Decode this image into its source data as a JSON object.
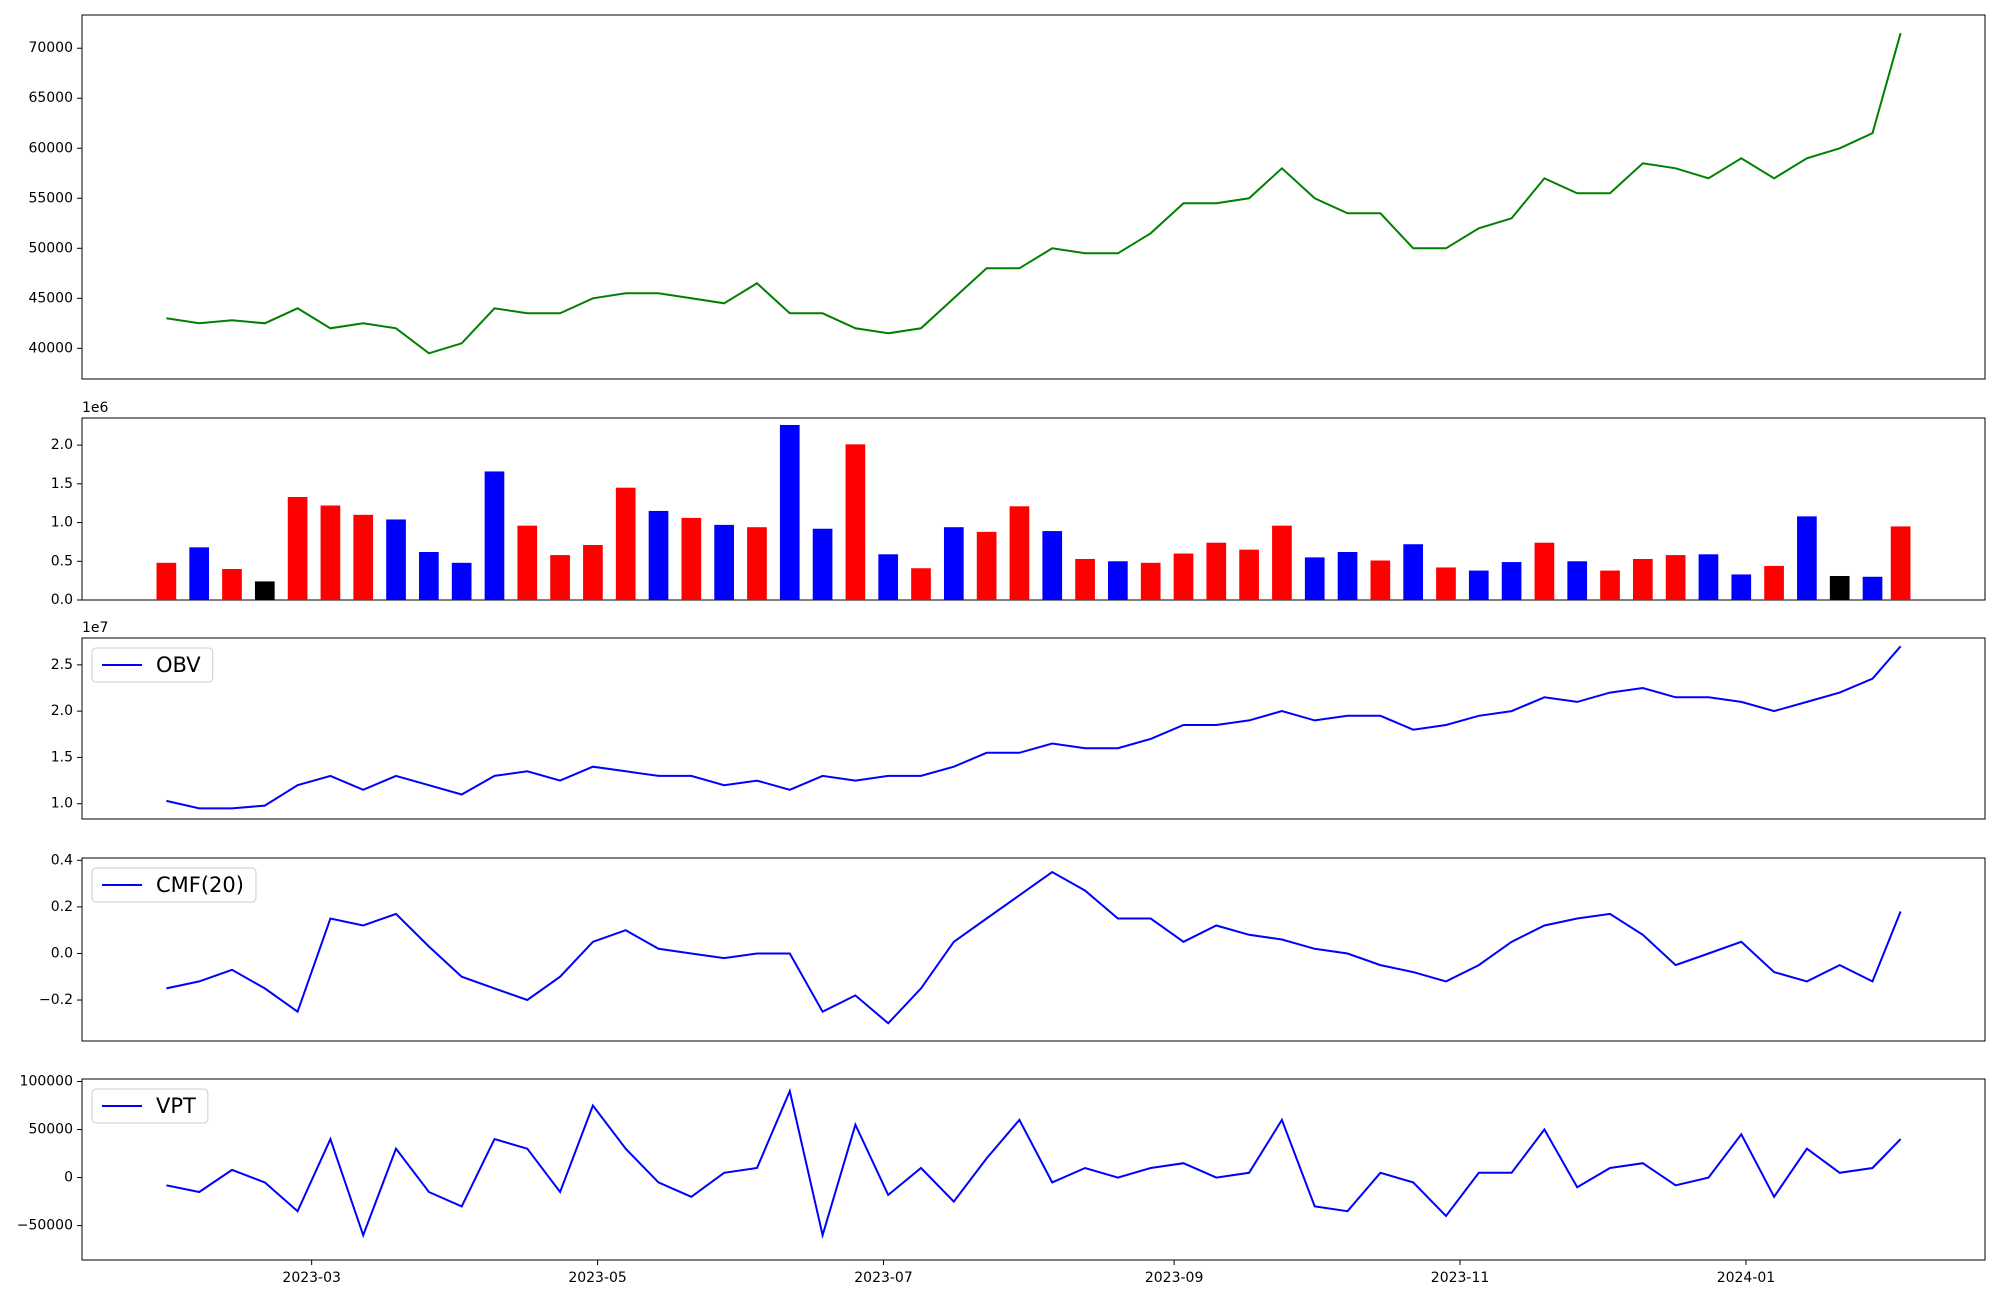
{
  "chart_data": [
    {
      "type": "line",
      "x": [
        "2023-01-29",
        "2023-02-05",
        "2023-02-12",
        "2023-02-19",
        "2023-02-26",
        "2023-03-05",
        "2023-03-12",
        "2023-03-19",
        "2023-03-26",
        "2023-04-02",
        "2023-04-09",
        "2023-04-16",
        "2023-04-23",
        "2023-04-30",
        "2023-05-07",
        "2023-05-14",
        "2023-05-21",
        "2023-05-28",
        "2023-06-04",
        "2023-06-11",
        "2023-06-18",
        "2023-06-25",
        "2023-07-02",
        "2023-07-09",
        "2023-07-16",
        "2023-07-23",
        "2023-07-30",
        "2023-08-06",
        "2023-08-13",
        "2023-08-20",
        "2023-08-27",
        "2023-09-03",
        "2023-09-10",
        "2023-09-17",
        "2023-09-24",
        "2023-10-01",
        "2023-10-08",
        "2023-10-15",
        "2023-10-22",
        "2023-10-29",
        "2023-11-05",
        "2023-11-12",
        "2023-11-19",
        "2023-11-26",
        "2023-12-03",
        "2023-12-10",
        "2023-12-17",
        "2023-12-24",
        "2023-12-31",
        "2024-01-07",
        "2024-01-14",
        "2024-01-21",
        "2024-01-28",
        "2024-02-03"
      ],
      "series": [
        {
          "color": "#008000",
          "values": [
            43000,
            42500,
            42800,
            42500,
            44000,
            42000,
            42500,
            42000,
            39500,
            40500,
            44000,
            43500,
            43500,
            45000,
            45500,
            45500,
            45000,
            44500,
            46500,
            43500,
            43500,
            42000,
            41500,
            42000,
            45000,
            48000,
            48000,
            50000,
            49500,
            49500,
            51500,
            54500,
            54500,
            55000,
            58000,
            55000,
            53500,
            53500,
            50000,
            50000,
            52000,
            53000,
            57000,
            55500,
            55500,
            58500,
            58000,
            57000,
            59000,
            57000,
            59000,
            60000,
            61500,
            71500
          ]
        }
      ],
      "xlim": [
        "2023-01-11",
        "2024-02-21"
      ],
      "ylim": [
        36935,
        73320
      ],
      "yticks": [
        40000,
        45000,
        50000,
        55000,
        60000,
        65000,
        70000
      ]
    },
    {
      "type": "bar",
      "x": [
        "2023-01-29",
        "2023-02-05",
        "2023-02-12",
        "2023-02-19",
        "2023-02-26",
        "2023-03-05",
        "2023-03-12",
        "2023-03-19",
        "2023-03-26",
        "2023-04-02",
        "2023-04-09",
        "2023-04-16",
        "2023-04-23",
        "2023-04-30",
        "2023-05-07",
        "2023-05-14",
        "2023-05-21",
        "2023-05-28",
        "2023-06-04",
        "2023-06-11",
        "2023-06-18",
        "2023-06-25",
        "2023-07-02",
        "2023-07-09",
        "2023-07-16",
        "2023-07-23",
        "2023-07-30",
        "2023-08-06",
        "2023-08-13",
        "2023-08-20",
        "2023-08-27",
        "2023-09-03",
        "2023-09-10",
        "2023-09-17",
        "2023-09-24",
        "2023-10-01",
        "2023-10-08",
        "2023-10-15",
        "2023-10-22",
        "2023-10-29",
        "2023-11-05",
        "2023-11-12",
        "2023-11-19",
        "2023-11-26",
        "2023-12-03",
        "2023-12-10",
        "2023-12-17",
        "2023-12-24",
        "2023-12-31",
        "2024-01-07",
        "2024-01-14",
        "2024-01-21",
        "2024-01-28",
        "2024-02-03"
      ],
      "series": [
        {
          "values": [
            480000,
            680000,
            400000,
            240000,
            1330000,
            1220000,
            1100000,
            1040000,
            620000,
            480000,
            1660000,
            960000,
            580000,
            710000,
            1450000,
            1150000,
            1060000,
            970000,
            940000,
            2260000,
            920000,
            2010000,
            590000,
            410000,
            940000,
            880000,
            1210000,
            890000,
            530000,
            500000,
            480000,
            600000,
            740000,
            650000,
            960000,
            550000,
            620000,
            510000,
            720000,
            420000,
            380000,
            490000,
            740000,
            500000,
            380000,
            530000,
            580000,
            590000,
            330000,
            440000,
            1080000,
            310000,
            300000,
            950000
          ],
          "colors": [
            "red",
            "blue",
            "red",
            "black",
            "red",
            "red",
            "red",
            "blue",
            "blue",
            "blue",
            "blue",
            "red",
            "red",
            "red",
            "red",
            "blue",
            "red",
            "blue",
            "red",
            "blue",
            "blue",
            "red",
            "blue",
            "red",
            "blue",
            "red",
            "red",
            "blue",
            "red",
            "blue",
            "red",
            "red",
            "red",
            "red",
            "red",
            "blue",
            "blue",
            "red",
            "blue",
            "red",
            "blue",
            "blue",
            "red",
            "blue",
            "red",
            "red",
            "red",
            "blue",
            "blue",
            "red",
            "blue",
            "black",
            "blue",
            "red"
          ]
        }
      ],
      "xlim": [
        "2023-01-11",
        "2024-02-21"
      ],
      "ylim": [
        0,
        2350000
      ],
      "yticks": [
        {
          "value": 0,
          "label": "0.0"
        },
        {
          "value": 500000,
          "label": "0.5"
        },
        {
          "value": 1000000,
          "label": "1.0"
        },
        {
          "value": 1500000,
          "label": "1.5"
        },
        {
          "value": 2000000,
          "label": "2.0"
        }
      ],
      "y_offset_label": "1e6"
    },
    {
      "type": "line",
      "x": [
        "2023-01-29",
        "2023-02-05",
        "2023-02-12",
        "2023-02-19",
        "2023-02-26",
        "2023-03-05",
        "2023-03-12",
        "2023-03-19",
        "2023-03-26",
        "2023-04-02",
        "2023-04-09",
        "2023-04-16",
        "2023-04-23",
        "2023-04-30",
        "2023-05-07",
        "2023-05-14",
        "2023-05-21",
        "2023-05-28",
        "2023-06-04",
        "2023-06-11",
        "2023-06-18",
        "2023-06-25",
        "2023-07-02",
        "2023-07-09",
        "2023-07-16",
        "2023-07-23",
        "2023-07-30",
        "2023-08-06",
        "2023-08-13",
        "2023-08-20",
        "2023-08-27",
        "2023-09-03",
        "2023-09-10",
        "2023-09-17",
        "2023-09-24",
        "2023-10-01",
        "2023-10-08",
        "2023-10-15",
        "2023-10-22",
        "2023-10-29",
        "2023-11-05",
        "2023-11-12",
        "2023-11-19",
        "2023-11-26",
        "2023-12-03",
        "2023-12-10",
        "2023-12-17",
        "2023-12-24",
        "2023-12-31",
        "2024-01-07",
        "2024-01-14",
        "2024-01-21",
        "2024-01-28",
        "2024-02-03"
      ],
      "series": [
        {
          "name": "OBV",
          "color": "#0000ff",
          "values": [
            10300000,
            9500000,
            9500000,
            9800000,
            12000000,
            13000000,
            11500000,
            13000000,
            12000000,
            11000000,
            13000000,
            13500000,
            12500000,
            14000000,
            13500000,
            13000000,
            13000000,
            12000000,
            12500000,
            11500000,
            13000000,
            12500000,
            13000000,
            13000000,
            14000000,
            15500000,
            15500000,
            16500000,
            16000000,
            16000000,
            17000000,
            18500000,
            18500000,
            19000000,
            20000000,
            19000000,
            19500000,
            19500000,
            18000000,
            18500000,
            19500000,
            20000000,
            21500000,
            21000000,
            22000000,
            22500000,
            21500000,
            21500000,
            21000000,
            20000000,
            21000000,
            22000000,
            23500000,
            27000000
          ]
        }
      ],
      "xlim": [
        "2023-01-11",
        "2024-02-21"
      ],
      "ylim": [
        8350000,
        27900000
      ],
      "yticks": [
        {
          "value": 10000000,
          "label": "1.0"
        },
        {
          "value": 15000000,
          "label": "1.5"
        },
        {
          "value": 20000000,
          "label": "2.0"
        },
        {
          "value": 25000000,
          "label": "2.5"
        }
      ],
      "y_offset_label": "1e7",
      "legend": "upper left"
    },
    {
      "type": "line",
      "x": [
        "2023-01-29",
        "2023-02-05",
        "2023-02-12",
        "2023-02-19",
        "2023-02-26",
        "2023-03-05",
        "2023-03-12",
        "2023-03-19",
        "2023-03-26",
        "2023-04-02",
        "2023-04-09",
        "2023-04-16",
        "2023-04-23",
        "2023-04-30",
        "2023-05-07",
        "2023-05-14",
        "2023-05-21",
        "2023-05-28",
        "2023-06-04",
        "2023-06-11",
        "2023-06-18",
        "2023-06-25",
        "2023-07-02",
        "2023-07-09",
        "2023-07-16",
        "2023-07-23",
        "2023-07-30",
        "2023-08-06",
        "2023-08-13",
        "2023-08-20",
        "2023-08-27",
        "2023-09-03",
        "2023-09-10",
        "2023-09-17",
        "2023-09-24",
        "2023-10-01",
        "2023-10-08",
        "2023-10-15",
        "2023-10-22",
        "2023-10-29",
        "2023-11-05",
        "2023-11-12",
        "2023-11-19",
        "2023-11-26",
        "2023-12-03",
        "2023-12-10",
        "2023-12-17",
        "2023-12-24",
        "2023-12-31",
        "2024-01-07",
        "2024-01-14",
        "2024-01-21",
        "2024-01-28",
        "2024-02-03"
      ],
      "series": [
        {
          "name": "CMF(20)",
          "color": "#0000ff",
          "values": [
            -0.15,
            -0.12,
            -0.07,
            -0.15,
            -0.25,
            0.15,
            0.12,
            0.17,
            0.03,
            -0.1,
            -0.15,
            -0.2,
            -0.1,
            0.05,
            0.1,
            0.02,
            0.0,
            -0.02,
            0.0,
            0.0,
            -0.25,
            -0.18,
            -0.3,
            -0.15,
            0.05,
            0.15,
            0.25,
            0.35,
            0.27,
            0.15,
            0.15,
            0.05,
            0.12,
            0.08,
            0.06,
            0.02,
            0.0,
            -0.05,
            -0.08,
            -0.12,
            -0.05,
            0.05,
            0.12,
            0.15,
            0.17,
            0.08,
            -0.05,
            0.0,
            0.05,
            -0.08,
            -0.12,
            -0.05,
            -0.12,
            0.18
          ]
        }
      ],
      "xlim": [
        "2023-01-11",
        "2024-02-21"
      ],
      "ylim": [
        -0.376,
        0.41
      ],
      "yticks": [
        {
          "value": -0.2,
          "label": "−0.2"
        },
        {
          "value": 0,
          "label": "0.0"
        },
        {
          "value": 0.2,
          "label": "0.2"
        },
        {
          "value": 0.4,
          "label": "0.4"
        }
      ],
      "legend": "upper left"
    },
    {
      "type": "line",
      "x": [
        "2023-01-29",
        "2023-02-05",
        "2023-02-12",
        "2023-02-19",
        "2023-02-26",
        "2023-03-05",
        "2023-03-12",
        "2023-03-19",
        "2023-03-26",
        "2023-04-02",
        "2023-04-09",
        "2023-04-16",
        "2023-04-23",
        "2023-04-30",
        "2023-05-07",
        "2023-05-14",
        "2023-05-21",
        "2023-05-28",
        "2023-06-04",
        "2023-06-11",
        "2023-06-18",
        "2023-06-25",
        "2023-07-02",
        "2023-07-09",
        "2023-07-16",
        "2023-07-23",
        "2023-07-30",
        "2023-08-06",
        "2023-08-13",
        "2023-08-20",
        "2023-08-27",
        "2023-09-03",
        "2023-09-10",
        "2023-09-17",
        "2023-09-24",
        "2023-10-01",
        "2023-10-08",
        "2023-10-15",
        "2023-10-22",
        "2023-10-29",
        "2023-11-05",
        "2023-11-12",
        "2023-11-19",
        "2023-11-26",
        "2023-12-03",
        "2023-12-10",
        "2023-12-17",
        "2023-12-24",
        "2023-12-31",
        "2024-01-07",
        "2024-01-14",
        "2024-01-21",
        "2024-01-28",
        "2024-02-03"
      ],
      "series": [
        {
          "name": "VPT",
          "color": "#0000ff",
          "values": [
            -8000,
            -15000,
            8000,
            -5000,
            -35000,
            40000,
            -60000,
            30000,
            -15000,
            -30000,
            40000,
            30000,
            -15000,
            75000,
            30000,
            -5000,
            -20000,
            5000,
            10000,
            90000,
            -60000,
            55000,
            -18000,
            10000,
            -25000,
            20000,
            60000,
            -5000,
            10000,
            0,
            10000,
            15000,
            0,
            5000,
            60000,
            -30000,
            -35000,
            5000,
            -5000,
            -40000,
            5000,
            5000,
            50000,
            -10000,
            10000,
            15000,
            -8000,
            0,
            45000,
            -20000,
            30000,
            5000,
            10000,
            40000
          ]
        }
      ],
      "xlim": [
        "2023-01-11",
        "2024-02-21"
      ],
      "ylim": [
        -85800,
        102600
      ],
      "yticks": [
        {
          "value": -50000,
          "label": "−50000"
        },
        0,
        50000,
        100000
      ],
      "xticks": [
        {
          "value": "2023-03-01",
          "label": "2023-03"
        },
        {
          "value": "2023-05-01",
          "label": "2023-05"
        },
        {
          "value": "2023-07-01",
          "label": "2023-07"
        },
        {
          "value": "2023-09-01",
          "label": "2023-09"
        },
        {
          "value": "2023-11-01",
          "label": "2023-11"
        },
        {
          "value": "2024-01-01",
          "label": "2024-01"
        }
      ],
      "legend": "upper left"
    }
  ]
}
